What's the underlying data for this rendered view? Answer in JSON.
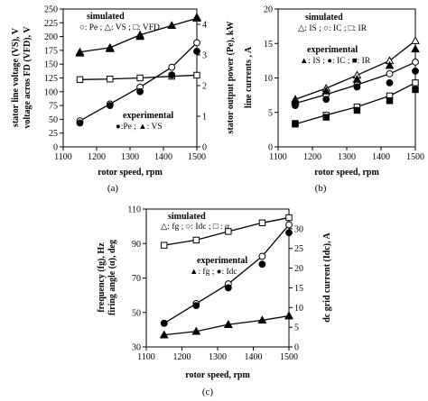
{
  "chart_data": [
    {
      "id": "a",
      "type": "line",
      "caption": "(a)",
      "xlabel": "rotor speed, rpm",
      "ylabel_lines": [
        "stator line voltage (VS), V",
        "voltage acros FD (VFD), V"
      ],
      "y2label": "stator output power (Pe), kW",
      "xlim": [
        1100,
        1500
      ],
      "xticks": [
        1100,
        1200,
        1300,
        1400,
        1500
      ],
      "ylim": [
        0,
        250
      ],
      "yticks": [
        0,
        25,
        50,
        75,
        100,
        125,
        150,
        175,
        200,
        225,
        250
      ],
      "y2lim": [
        0,
        4.5
      ],
      "y2ticks": [
        0,
        1,
        2,
        3,
        4
      ],
      "legend_blocks": [
        {
          "title": "simulated",
          "text": "○: Pe ; △: VS ; □: VFD"
        },
        {
          "title": "experimental",
          "text": "●:Pe ; ▲: VS"
        }
      ],
      "series": [
        {
          "label": "VS simulated",
          "axis": "left",
          "marker": "triangle-open",
          "line": true,
          "x": [
            1150,
            1240,
            1330,
            1425,
            1500
          ],
          "y": [
            172,
            180,
            203,
            220,
            233
          ]
        },
        {
          "label": "VFD simulated",
          "axis": "left",
          "marker": "square-open",
          "line": true,
          "x": [
            1150,
            1240,
            1330,
            1425,
            1500
          ],
          "y": [
            122,
            123,
            125,
            128,
            130
          ]
        },
        {
          "label": "Pe simulated",
          "axis": "right",
          "marker": "circle-open",
          "line": true,
          "x": [
            1150,
            1240,
            1330,
            1425,
            1500
          ],
          "y": [
            0.85,
            1.4,
            1.95,
            2.6,
            3.4
          ]
        },
        {
          "label": "VS experimental",
          "axis": "left",
          "marker": "triangle-filled",
          "line": false,
          "x": [
            1150,
            1240,
            1330,
            1425,
            1500
          ],
          "y": [
            170,
            178,
            200,
            220,
            235
          ]
        },
        {
          "label": "Pe experimental",
          "axis": "right",
          "marker": "circle-filled",
          "line": false,
          "x": [
            1150,
            1240,
            1330,
            1425,
            1500
          ],
          "y": [
            0.78,
            1.35,
            1.8,
            2.35,
            3.12
          ]
        }
      ]
    },
    {
      "id": "b",
      "type": "line",
      "caption": "(b)",
      "xlabel": "rotor speed, rpm",
      "ylabel_lines": [
        "line currents ,  A"
      ],
      "xlim": [
        1100,
        1500
      ],
      "xticks": [
        1100,
        1200,
        1300,
        1400,
        1500
      ],
      "ylim": [
        0,
        20
      ],
      "yticks": [
        0,
        5,
        10,
        15,
        20
      ],
      "legend_blocks": [
        {
          "title": "simulated",
          "text": "△: IS ; ○: IC ; □: IR"
        },
        {
          "title": "experimental",
          "text": "▲: IS ; ●: IC ; ■: IR"
        }
      ],
      "series": [
        {
          "label": "IS simulated",
          "marker": "triangle-open",
          "line": true,
          "x": [
            1150,
            1240,
            1330,
            1425,
            1500
          ],
          "y": [
            6.9,
            8.5,
            10.4,
            12.5,
            15.4
          ]
        },
        {
          "label": "IC simulated",
          "marker": "circle-open",
          "line": true,
          "x": [
            1150,
            1240,
            1330,
            1425,
            1500
          ],
          "y": [
            6.3,
            7.6,
            9.0,
            10.6,
            12.3
          ]
        },
        {
          "label": "IR simulated",
          "marker": "square-open",
          "line": true,
          "x": [
            1150,
            1240,
            1330,
            1425,
            1500
          ],
          "y": [
            3.3,
            4.6,
            5.8,
            7.4,
            9.3
          ]
        },
        {
          "label": "IS experimental",
          "marker": "triangle-filled",
          "line": false,
          "x": [
            1150,
            1240,
            1330,
            1425,
            1500
          ],
          "y": [
            6.6,
            8.1,
            9.8,
            11.8,
            14.2
          ]
        },
        {
          "label": "IC experimental",
          "marker": "circle-filled",
          "line": false,
          "x": [
            1150,
            1240,
            1330,
            1425,
            1500
          ],
          "y": [
            6.0,
            6.9,
            8.7,
            9.3,
            11.0
          ]
        },
        {
          "label": "IR experimental",
          "marker": "square-filled",
          "line": false,
          "x": [
            1150,
            1240,
            1330,
            1425,
            1500
          ],
          "y": [
            3.4,
            4.3,
            5.3,
            6.7,
            8.3
          ]
        }
      ]
    },
    {
      "id": "c",
      "type": "line",
      "caption": "(c)",
      "xlabel": "rotor speed, rpm",
      "ylabel_lines": [
        "frequency (fg), Hz",
        "firing angle (α), deg"
      ],
      "y2label": "dc grid  current (Idc), A",
      "xlim": [
        1100,
        1500
      ],
      "xticks": [
        1100,
        1200,
        1300,
        1400,
        1500
      ],
      "ylim": [
        30,
        110
      ],
      "yticks": [
        30,
        50,
        70,
        90,
        110
      ],
      "y2lim": [
        0,
        35
      ],
      "y2ticks": [
        0,
        5,
        10,
        15,
        20,
        25,
        30
      ],
      "legend_blocks": [
        {
          "title": "simulated",
          "text": "△: fg ; ○: Idc ; □ : α"
        },
        {
          "title": "experimental",
          "text": "▲: fg ; ●: Idc"
        }
      ],
      "series": [
        {
          "label": "α simulated",
          "axis": "left",
          "marker": "square-open",
          "line": true,
          "x": [
            1150,
            1240,
            1330,
            1425,
            1500
          ],
          "y": [
            89,
            92,
            97,
            102,
            105
          ]
        },
        {
          "label": "Idc simulated",
          "axis": "right",
          "marker": "circle-open",
          "line": true,
          "x": [
            1150,
            1240,
            1330,
            1425,
            1500
          ],
          "y": [
            6.0,
            11.0,
            16.0,
            23.0,
            31.0
          ]
        },
        {
          "label": "fg simulated",
          "axis": "left",
          "marker": "triangle-open",
          "line": true,
          "x": [
            1150,
            1240,
            1330,
            1425,
            1500
          ],
          "y": [
            37,
            39,
            43,
            45.5,
            48
          ]
        },
        {
          "label": "Idc experimental",
          "axis": "right",
          "marker": "circle-filled",
          "line": false,
          "x": [
            1150,
            1240,
            1330,
            1425,
            1500
          ],
          "y": [
            6.0,
            10.5,
            15.0,
            21.0,
            29.0
          ]
        },
        {
          "label": "fg experimental",
          "axis": "left",
          "marker": "triangle-filled",
          "line": false,
          "x": [
            1150,
            1240,
            1330,
            1425,
            1500
          ],
          "y": [
            37,
            39,
            43,
            45.5,
            48
          ]
        }
      ]
    }
  ]
}
